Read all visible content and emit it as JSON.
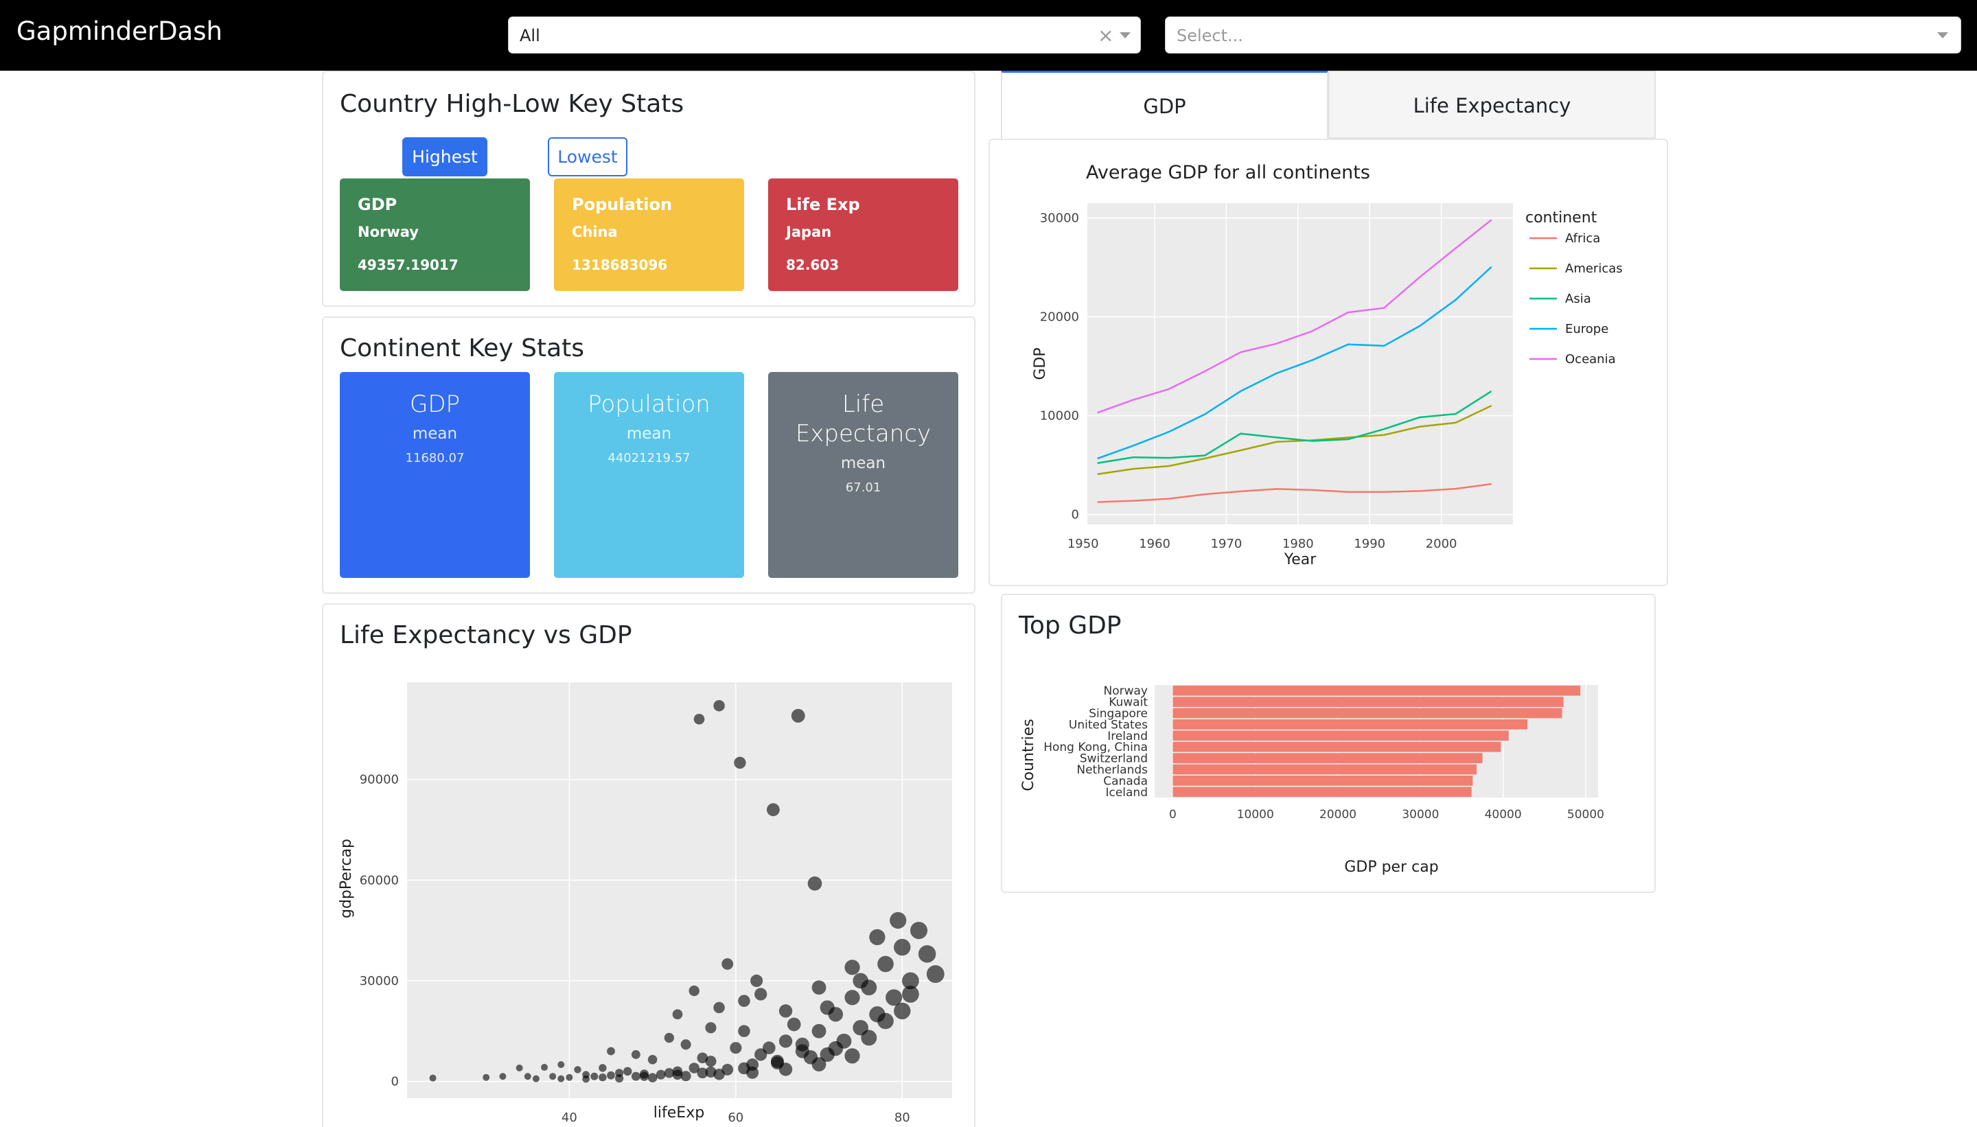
{
  "app": {
    "title": "GapminderDash"
  },
  "filters": {
    "continent": {
      "value": "All",
      "clear_icon": "×"
    },
    "country": {
      "placeholder": "Select..."
    }
  },
  "country_stats": {
    "title": "Country High-Low Key Stats",
    "highest_label": "Highest",
    "lowest_label": "Lowest",
    "cards": [
      {
        "title": "GDP",
        "country": "Norway",
        "value": "49357.19017",
        "color": "#3e8654"
      },
      {
        "title": "Population",
        "country": "China",
        "value": "1318683096",
        "color": "#f6c342"
      },
      {
        "title": "Life Exp",
        "country": "Japan",
        "value": "82.603",
        "color": "#cc4049"
      }
    ]
  },
  "continent_stats": {
    "title": "Continent Key Stats",
    "cards": [
      {
        "title": "GDP",
        "sub": "mean",
        "value": "11680.07",
        "color": "#316af0"
      },
      {
        "title": "Population",
        "sub": "mean",
        "value": "44021219.57",
        "color": "#5bc6ea"
      },
      {
        "title": "Life Expectancy",
        "sub": "mean",
        "value": "67.01",
        "color": "#6c757d"
      }
    ]
  },
  "tabs": [
    {
      "label": "GDP",
      "active": true
    },
    {
      "label": "Life Expectancy",
      "active": false
    }
  ],
  "chart_data": [
    {
      "type": "line",
      "title": "Average GDP for all continents",
      "xlabel": "Year",
      "ylabel": "GDP",
      "legend_title": "continent",
      "legend_position": "right",
      "x": [
        1952,
        1957,
        1962,
        1967,
        1972,
        1977,
        1982,
        1987,
        1992,
        1997,
        2002,
        2007
      ],
      "xticks": [
        1950,
        1960,
        1970,
        1980,
        1990,
        2000
      ],
      "yticks": [
        0,
        10000,
        20000,
        30000
      ],
      "xlim": [
        1950.6,
        2010
      ],
      "ylim": [
        -1000,
        31500
      ],
      "grid": true,
      "series": [
        {
          "name": "Africa",
          "color": "#f8766d",
          "values": [
            1253,
            1385,
            1598,
            2050,
            2340,
            2586,
            2482,
            2283,
            2282,
            2379,
            2599,
            3089
          ]
        },
        {
          "name": "Americas",
          "color": "#a3a500",
          "values": [
            4079,
            4616,
            4902,
            5668,
            6491,
            7352,
            7507,
            7793,
            8045,
            8889,
            9288,
            11003
          ]
        },
        {
          "name": "Asia",
          "color": "#00bf7d",
          "values": [
            5195,
            5788,
            5729,
            5971,
            8187,
            7791,
            7434,
            7608,
            8640,
            9834,
            10174,
            12473
          ]
        },
        {
          "name": "Europe",
          "color": "#00b0f6",
          "values": [
            5661,
            6963,
            8365,
            10144,
            12480,
            14284,
            15618,
            17214,
            17062,
            19077,
            21712,
            25054
          ]
        },
        {
          "name": "Oceania",
          "color": "#e76bf3",
          "values": [
            10298,
            11599,
            12696,
            14496,
            16417,
            17284,
            18555,
            20448,
            20894,
            24024,
            26939,
            29810
          ]
        }
      ]
    },
    {
      "type": "bar",
      "orientation": "horizontal",
      "title": "Top GDP",
      "xlabel": "GDP per cap",
      "ylabel": "Countries",
      "color": "#f07f72",
      "categories": [
        "Norway",
        "Kuwait",
        "Singapore",
        "United States",
        "Ireland",
        "Hong Kong, China",
        "Switzerland",
        "Netherlands",
        "Canada",
        "Iceland"
      ],
      "values": [
        49357,
        47307,
        47143,
        42952,
        40676,
        39725,
        37506,
        36798,
        36319,
        36181
      ],
      "xticks": [
        0,
        10000,
        20000,
        30000,
        40000,
        50000
      ],
      "xlim": [
        -2200,
        51500
      ]
    },
    {
      "type": "scatter",
      "title": "Life Expectancy vs GDP",
      "xlabel": "lifeExp",
      "ylabel": "gdpPercap",
      "xticks": [
        40,
        60,
        80
      ],
      "yticks": [
        0,
        30000,
        60000,
        90000
      ],
      "xlim": [
        20.5,
        86
      ],
      "ylim": [
        -5000,
        119000
      ],
      "grid": true,
      "points": [
        [
          23.6,
          1000
        ],
        [
          30,
          1200
        ],
        [
          32,
          1500
        ],
        [
          34,
          4000
        ],
        [
          35,
          1500
        ],
        [
          36,
          800
        ],
        [
          37,
          4200
        ],
        [
          38,
          1500
        ],
        [
          39,
          5000
        ],
        [
          40,
          1200
        ],
        [
          41,
          3500
        ],
        [
          42,
          2000
        ],
        [
          43,
          1500
        ],
        [
          44,
          4000
        ],
        [
          45,
          1800
        ],
        [
          46,
          2500
        ],
        [
          47,
          3000
        ],
        [
          48,
          1500
        ],
        [
          49,
          2200
        ],
        [
          50,
          6500
        ],
        [
          51,
          2000
        ],
        [
          52,
          2500
        ],
        [
          53,
          3000
        ],
        [
          54,
          11000
        ],
        [
          55,
          4000
        ],
        [
          55.6,
          108000
        ],
        [
          56,
          2500
        ],
        [
          57,
          6000
        ],
        [
          58,
          112000
        ],
        [
          59,
          3500
        ],
        [
          60,
          10000
        ],
        [
          60.5,
          95000
        ],
        [
          61,
          15000
        ],
        [
          62,
          5000
        ],
        [
          63,
          8000
        ],
        [
          64.5,
          81000
        ],
        [
          65,
          6000
        ],
        [
          66,
          12000
        ],
        [
          67.5,
          109000
        ],
        [
          68,
          9000
        ],
        [
          69.5,
          59000
        ],
        [
          70,
          15000
        ],
        [
          71,
          8000
        ],
        [
          72,
          20000
        ],
        [
          73,
          12000
        ],
        [
          74,
          25000
        ],
        [
          75,
          16000
        ],
        [
          76,
          28000
        ],
        [
          77,
          20000
        ],
        [
          78,
          35000
        ],
        [
          79,
          25000
        ],
        [
          80,
          40000
        ],
        [
          81,
          30000
        ],
        [
          82,
          45000
        ],
        [
          83,
          38000
        ],
        [
          84,
          32000
        ],
        [
          62.5,
          30000
        ],
        [
          55,
          27000
        ],
        [
          53,
          20000
        ],
        [
          58,
          22000
        ],
        [
          48,
          8000
        ],
        [
          45,
          9000
        ],
        [
          52,
          13000
        ],
        [
          57,
          16000
        ],
        [
          61,
          24000
        ],
        [
          66,
          21000
        ],
        [
          70,
          28000
        ],
        [
          74,
          34000
        ],
        [
          77,
          43000
        ],
        [
          79.5,
          48000
        ],
        [
          39,
          800
        ],
        [
          42,
          700
        ],
        [
          46,
          900
        ],
        [
          50,
          1100
        ],
        [
          54,
          1600
        ],
        [
          58,
          2100
        ],
        [
          62,
          2600
        ],
        [
          66,
          3600
        ],
        [
          70,
          5100
        ],
        [
          74,
          7600
        ],
        [
          44,
          1200
        ],
        [
          49,
          1500
        ],
        [
          53,
          2000
        ],
        [
          57,
          2800
        ],
        [
          61,
          3900
        ],
        [
          65,
          5500
        ],
        [
          69,
          7200
        ],
        [
          72,
          9800
        ],
        [
          76,
          13000
        ],
        [
          80,
          21000
        ],
        [
          59,
          35000
        ],
        [
          63,
          26000
        ],
        [
          67,
          17000
        ],
        [
          71,
          22000
        ],
        [
          75,
          30000
        ],
        [
          78,
          18000
        ],
        [
          81,
          26000
        ],
        [
          68,
          11000
        ],
        [
          64,
          10000
        ],
        [
          56,
          7000
        ]
      ]
    }
  ]
}
